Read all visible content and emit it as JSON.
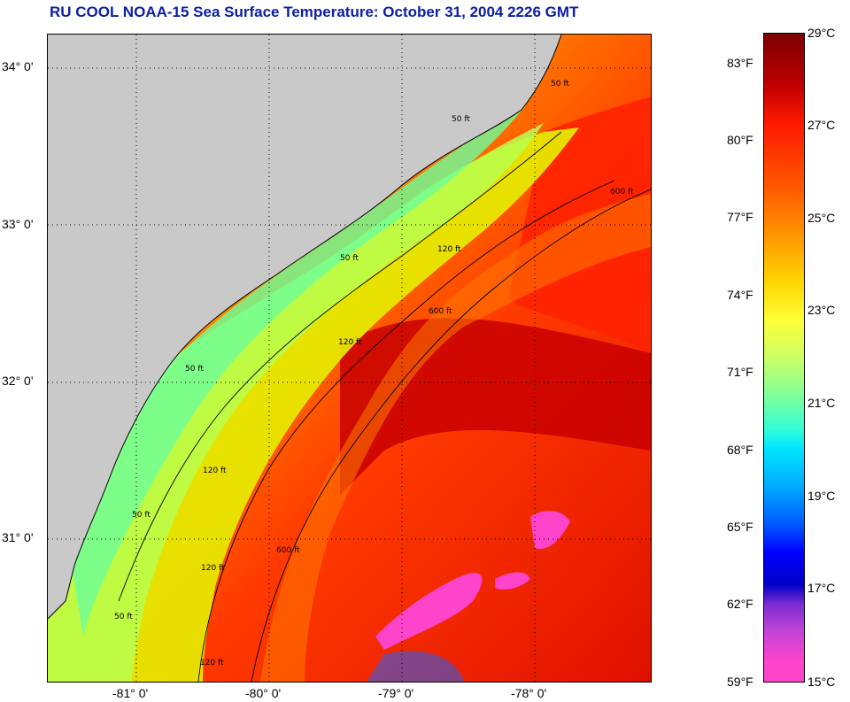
{
  "title": "RU COOL  NOAA-15  Sea Surface Temperature:  October 31, 2004 2226 GMT",
  "map": {
    "lat_labels": [
      "34° 0'",
      "33° 0'",
      "32° 0'",
      "31° 0'"
    ],
    "lon_labels": [
      "-81° 0'",
      "-80° 0'",
      "-79° 0'",
      "-78° 0'"
    ],
    "contour_labels": [
      "50 ft",
      "50 ft",
      "50 ft",
      "50 ft",
      "50 ft",
      "50 ft",
      "120 ft",
      "120 ft",
      "120 ft",
      "120 ft",
      "120 ft",
      "600 ft",
      "600 ft",
      "600 ft"
    ],
    "land_color": "#c9c9c9",
    "cloud_color": "#ff44cc"
  },
  "colorbar": {
    "fahrenheit": [
      "83°F",
      "80°F",
      "77°F",
      "74°F",
      "71°F",
      "68°F",
      "65°F",
      "62°F",
      "59°F"
    ],
    "celsius": [
      "29°C",
      "27°C",
      "25°C",
      "23°C",
      "21°C",
      "19°C",
      "17°C",
      "15°C"
    ]
  }
}
